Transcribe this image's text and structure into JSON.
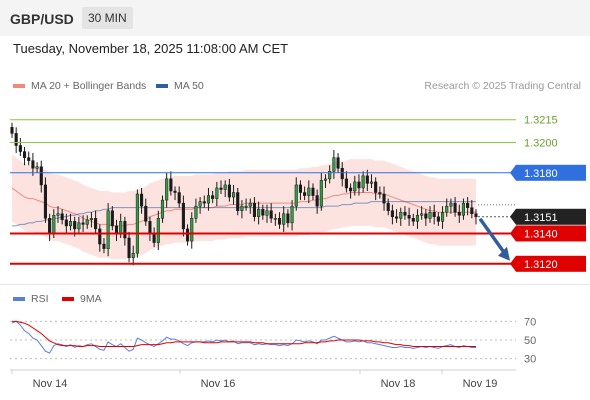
{
  "header": {
    "pair": "GBP/USD",
    "interval": "30 MIN"
  },
  "timestamp": "Tuesday, November 18, 2025 11:08:00 AM CET",
  "legend": {
    "ma20": {
      "label": "MA 20 + Bollinger Bands",
      "color": "#f08a80"
    },
    "ma50": {
      "label": "MA 50",
      "color": "#2f5d9e"
    }
  },
  "credit": "Research © 2025 Trading Central",
  "rsi_legend": {
    "rsi": {
      "label": "RSI",
      "color": "#5a7fd6"
    },
    "ma9": {
      "label": "9MA",
      "color": "#e00000"
    }
  },
  "chart_data": [
    {
      "type": "candlestick",
      "ylim": [
        1.3108,
        1.3228
      ],
      "x_ticks": [
        "Nov 14",
        "Nov 16",
        "Nov 18",
        "Nov 19"
      ],
      "current_price": {
        "value": 1.3151,
        "label": "1.3151",
        "color": "#222222"
      },
      "levels": [
        {
          "value": 1.3215,
          "label": "1.3215",
          "kind": "target",
          "color": "#8cc63f"
        },
        {
          "value": 1.32,
          "label": "1.3200",
          "kind": "target",
          "color": "#8cc63f"
        },
        {
          "value": 1.318,
          "label": "1.3180",
          "kind": "pivot",
          "color": "#2f6fe0"
        },
        {
          "value": 1.314,
          "label": "1.3140",
          "kind": "support",
          "color": "#e00000"
        },
        {
          "value": 1.312,
          "label": "1.3120",
          "kind": "support",
          "color": "#e00000"
        }
      ],
      "forecast_arrow": {
        "from": 1.3151,
        "to": 1.3122,
        "color": "#2f5d9e"
      },
      "candle_count": 112,
      "candles_ohlc": [],
      "close": [
        1.3206,
        1.3198,
        1.3194,
        1.319,
        1.3188,
        1.3183,
        1.3184,
        1.3172,
        1.315,
        1.314,
        1.3152,
        1.3153,
        1.3149,
        1.3145,
        1.3148,
        1.3143,
        1.3147,
        1.3146,
        1.3149,
        1.315,
        1.3143,
        1.3133,
        1.313,
        1.3155,
        1.3145,
        1.314,
        1.3148,
        1.3137,
        1.3124,
        1.3127,
        1.3166,
        1.3158,
        1.3148,
        1.314,
        1.3134,
        1.315,
        1.3162,
        1.3176,
        1.3168,
        1.3167,
        1.316,
        1.3143,
        1.3135,
        1.315,
        1.3158,
        1.3161,
        1.316,
        1.3165,
        1.3163,
        1.317,
        1.3169,
        1.3172,
        1.3164,
        1.3167,
        1.3155,
        1.3158,
        1.3158,
        1.316,
        1.3151,
        1.3156,
        1.3152,
        1.3155,
        1.315,
        1.315,
        1.3146,
        1.3153,
        1.3147,
        1.3158,
        1.3172,
        1.3167,
        1.3165,
        1.317,
        1.3165,
        1.3158,
        1.3175,
        1.3176,
        1.3181,
        1.319,
        1.3183,
        1.3176,
        1.317,
        1.3168,
        1.3174,
        1.317,
        1.3178,
        1.3173,
        1.3174,
        1.3167,
        1.3166,
        1.316,
        1.3155,
        1.3151,
        1.315,
        1.3154,
        1.3152,
        1.315,
        1.3148,
        1.3152,
        1.3153,
        1.315,
        1.3154,
        1.3151,
        1.3148,
        1.3154,
        1.3158,
        1.316,
        1.3154,
        1.3152,
        1.316,
        1.3157,
        1.3153,
        1.3151
      ],
      "ma20": [
        1.317,
        1.3168,
        1.3166,
        1.3164,
        1.3163,
        1.3163,
        1.3162,
        1.3161,
        1.316,
        1.3158,
        1.3157,
        1.3157,
        1.3156,
        1.3155,
        1.3154,
        1.3153,
        1.3152,
        1.315,
        1.3149,
        1.3148,
        1.3147,
        1.3146,
        1.3146,
        1.3146,
        1.3145,
        1.3145,
        1.3145,
        1.3145,
        1.3146,
        1.3146,
        1.3147,
        1.3148,
        1.3149,
        1.3151,
        1.3152,
        1.3153,
        1.3154,
        1.3155,
        1.3155,
        1.3156,
        1.3156,
        1.3156,
        1.3156,
        1.3156,
        1.3157,
        1.3157,
        1.3157,
        1.3157,
        1.3157,
        1.3158,
        1.3158,
        1.3158,
        1.3159,
        1.3159,
        1.3159,
        1.3159,
        1.316,
        1.316,
        1.316,
        1.316,
        1.316,
        1.316,
        1.316,
        1.316,
        1.316,
        1.316,
        1.316,
        1.316,
        1.316,
        1.3161,
        1.3161,
        1.3161,
        1.3162,
        1.3162,
        1.3163,
        1.3163,
        1.3164,
        1.3165,
        1.3165,
        1.3166,
        1.3166,
        1.3167,
        1.3167,
        1.3167,
        1.3167,
        1.3167,
        1.3167,
        1.3166,
        1.3166,
        1.3166,
        1.3165,
        1.3164,
        1.3163,
        1.3162,
        1.3161,
        1.316,
        1.3159,
        1.3158,
        1.3157,
        1.3156,
        1.3155,
        1.3155,
        1.3154,
        1.3154,
        1.3154,
        1.3154,
        1.3154,
        1.3154,
        1.3154,
        1.3154,
        1.3154,
        1.3154
      ],
      "ma50": [
        1.3145,
        1.3145,
        1.3146,
        1.3146,
        1.3147,
        1.3147,
        1.3148,
        1.3148,
        1.3149,
        1.3149,
        1.315,
        1.315,
        1.3151,
        1.3151,
        1.3152,
        1.3152,
        1.3153,
        1.3153,
        1.3154,
        1.3154,
        1.3155,
        1.3155,
        1.3156,
        1.3156,
        1.3157,
        1.3157,
        1.3157,
        1.3157,
        1.3157,
        1.3157,
        1.3157,
        1.3157,
        1.3157,
        1.3157,
        1.3157,
        1.3157,
        1.3157,
        1.3157,
        1.3157,
        1.3157,
        1.3157,
        1.3157,
        1.3157,
        1.3157,
        1.3157,
        1.3157,
        1.3157,
        1.3157,
        1.3157,
        1.3157,
        1.3157,
        1.3157,
        1.3157,
        1.3157,
        1.3157,
        1.3157,
        1.3157,
        1.3157,
        1.3157,
        1.3157,
        1.3157,
        1.3157,
        1.3157,
        1.3157,
        1.3157,
        1.3157,
        1.3157,
        1.3157,
        1.3157,
        1.3157,
        1.3157,
        1.3157,
        1.3157,
        1.3157,
        1.3157,
        1.3158,
        1.3158,
        1.3158,
        1.3158,
        1.3159,
        1.3159,
        1.3159,
        1.316,
        1.316,
        1.316,
        1.316,
        1.3161,
        1.3161,
        1.3161,
        1.3161,
        1.3161,
        1.3161,
        1.3161,
        1.3161,
        1.3161,
        1.3161,
        1.3161,
        1.3161,
        1.3161,
        1.3161,
        1.3161,
        1.3161,
        1.3161,
        1.3161,
        1.3161,
        1.3161,
        1.3161,
        1.3161,
        1.3161,
        1.3161,
        1.3161,
        1.3161
      ],
      "bb_width": 0.0022
    },
    {
      "type": "line",
      "ylim": [
        20,
        80
      ],
      "y_ticks": [
        {
          "value": 70,
          "label": "70"
        },
        {
          "value": 50,
          "label": "50"
        },
        {
          "value": 30,
          "label": "30"
        }
      ],
      "series": [
        {
          "name": "RSI",
          "color": "#5a7fd6",
          "values": [
            68,
            70,
            66,
            60,
            57,
            52,
            50,
            44,
            38,
            36,
            44,
            46,
            45,
            43,
            45,
            42,
            44,
            43,
            45,
            46,
            43,
            40,
            39,
            48,
            45,
            43,
            46,
            42,
            38,
            40,
            52,
            50,
            47,
            45,
            43,
            46,
            49,
            53,
            51,
            51,
            49,
            46,
            44,
            47,
            48,
            48,
            48,
            49,
            48,
            50,
            49,
            50,
            48,
            49,
            46,
            47,
            47,
            47,
            45,
            46,
            45,
            46,
            45,
            45,
            44,
            45,
            44,
            46,
            50,
            49,
            48,
            49,
            48,
            46,
            50,
            50,
            52,
            54,
            52,
            50,
            48,
            48,
            49,
            48,
            49,
            47,
            47,
            46,
            45,
            44,
            43,
            42,
            42,
            43,
            42,
            42,
            41,
            42,
            43,
            42,
            43,
            42,
            41,
            43,
            44,
            45,
            43,
            42,
            44,
            43,
            42,
            42
          ]
        },
        {
          "name": "9MA",
          "color": "#e00000",
          "values": [
            70,
            70,
            69,
            68,
            66,
            63,
            60,
            57,
            53,
            49,
            47,
            45,
            44,
            44,
            44,
            44,
            43,
            43,
            44,
            44,
            44,
            43,
            43,
            43,
            43,
            43,
            43,
            43,
            43,
            43,
            44,
            45,
            45,
            45,
            45,
            45,
            46,
            47,
            47,
            48,
            48,
            48,
            48,
            48,
            48,
            48,
            47,
            47,
            47,
            47,
            48,
            48,
            48,
            48,
            48,
            48,
            48,
            48,
            47,
            47,
            47,
            46,
            46,
            46,
            46,
            46,
            46,
            46,
            46,
            46,
            47,
            47,
            47,
            47,
            48,
            48,
            49,
            49,
            50,
            50,
            50,
            50,
            50,
            50,
            49,
            49,
            49,
            48,
            48,
            47,
            47,
            46,
            45,
            45,
            44,
            44,
            43,
            43,
            43,
            43,
            43,
            43,
            43,
            43,
            43,
            43,
            43,
            43,
            43,
            43,
            43,
            43
          ]
        }
      ]
    }
  ]
}
